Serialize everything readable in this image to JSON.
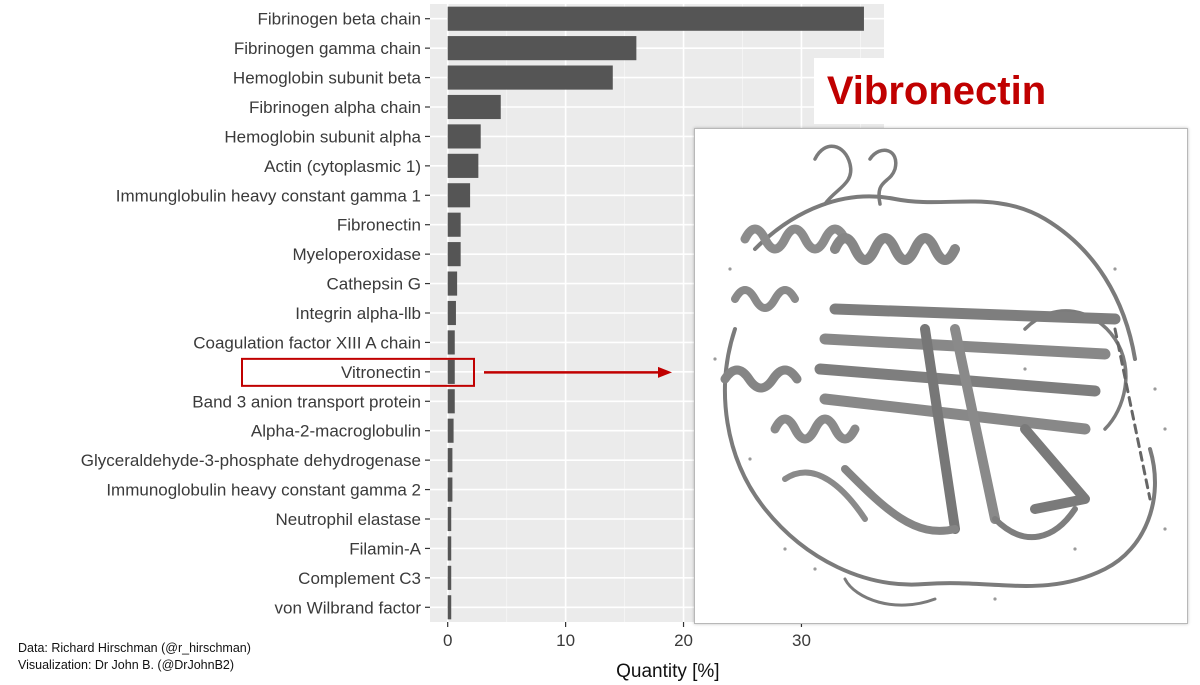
{
  "chart_data": {
    "type": "bar",
    "orientation": "horizontal",
    "categories": [
      "Fibrinogen beta chain",
      "Fibrinogen gamma chain",
      "Hemoglobin subunit beta",
      "Fibrinogen alpha chain",
      "Hemoglobin subunit alpha",
      "Actin (cytoplasmic 1)",
      "Immunglobulin heavy constant gamma 1",
      "Fibronectin",
      "Myeloperoxidase",
      "Cathepsin G",
      "Integrin alpha-llb",
      "Coagulation factor XIII A chain",
      "Vitronectin",
      "Band 3 anion transport protein",
      "Alpha-2-macroglobulin",
      "Glyceraldehyde-3-phosphate dehydrogenase",
      "Immunoglobulin heavy constant gamma 2",
      "Neutrophil elastase",
      "Filamin-A",
      "Complement C3",
      "von Wilbrand factor"
    ],
    "values": [
      35.3,
      16.0,
      14.0,
      4.5,
      2.8,
      2.6,
      1.9,
      1.1,
      1.1,
      0.8,
      0.7,
      0.6,
      0.6,
      0.6,
      0.5,
      0.4,
      0.4,
      0.3,
      0.3,
      0.3,
      0.3
    ],
    "xlabel": "Quantity [%]",
    "ylabel": "",
    "xlim": [
      -1.5,
      37
    ],
    "xticks": [
      0,
      10,
      20,
      30
    ],
    "grid": true,
    "bar_color": "#555555",
    "panel_color": "#ebebeb",
    "highlight": {
      "category": "Vitronectin",
      "color": "#c00000"
    }
  },
  "annotation": {
    "title": "Vibronectin",
    "title_color": "#c00000",
    "image": "protein-ribbon-structure"
  },
  "credits": {
    "data": "Data: Richard Hirschman (@r_hirschman)",
    "visualization": "Visualization: Dr John B. (@DrJohnB2)"
  }
}
